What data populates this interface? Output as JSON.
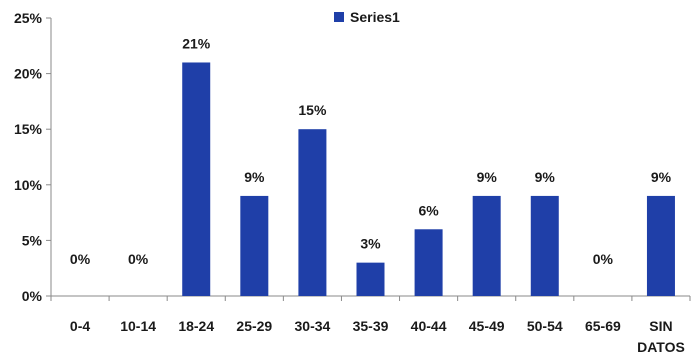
{
  "chart_data": {
    "type": "bar",
    "categories": [
      "0-4",
      "10-14",
      "18-24",
      "25-29",
      "30-34",
      "35-39",
      "40-44",
      "45-49",
      "50-54",
      "65-69",
      "SIN DATOS"
    ],
    "series": [
      {
        "name": "Series1",
        "values": [
          0,
          0,
          21,
          9,
          15,
          3,
          6,
          9,
          9,
          0,
          9
        ],
        "labels": [
          "0%",
          "0%",
          "21%",
          "9%",
          "15%",
          "3%",
          "6%",
          "9%",
          "9%",
          "0%",
          "9%"
        ],
        "color": "#1f3fa8"
      }
    ],
    "yticks": [
      "0%",
      "5%",
      "10%",
      "15%",
      "20%",
      "25%"
    ],
    "ylim": [
      0,
      25
    ],
    "grid": false,
    "legend": "top-center",
    "title": "",
    "xlabel": "",
    "ylabel": ""
  }
}
